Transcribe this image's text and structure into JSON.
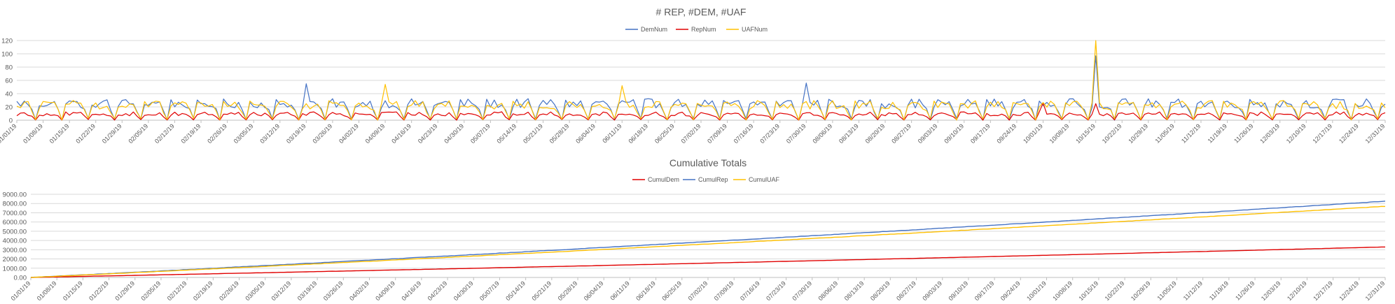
{
  "chart_data": [
    {
      "type": "line",
      "title": "# REP, #DEM, #UAF",
      "xlabel": "",
      "ylabel": "",
      "ylim": [
        0,
        120
      ],
      "yticks": [
        "0",
        "20",
        "40",
        "60",
        "80",
        "100",
        "120"
      ],
      "x_start": "2019-01-01",
      "x_end": "2019-12-31",
      "x_tick_step_days": 7,
      "series": [
        {
          "name": "DemNum",
          "color": "#4472c4",
          "base": 24,
          "amplitude": 14,
          "peaks": [
            {
              "date": "2019-10-15",
              "value": 97
            },
            {
              "date": "2019-07-30",
              "value": 56
            },
            {
              "date": "2019-03-19",
              "value": 55
            }
          ]
        },
        {
          "name": "RepNum",
          "color": "#e00000",
          "base": 9,
          "amplitude": 6,
          "peaks": [
            {
              "date": "2019-10-15",
              "value": 25
            },
            {
              "date": "2019-10-01",
              "value": 26
            }
          ]
        },
        {
          "name": "UAFNum",
          "color": "#ffc000",
          "base": 22,
          "amplitude": 13,
          "peaks": [
            {
              "date": "2019-10-15",
              "value": 121
            },
            {
              "date": "2019-04-09",
              "value": 54
            },
            {
              "date": "2019-06-11",
              "value": 52
            }
          ]
        }
      ]
    },
    {
      "type": "line",
      "title": "Cumulative Totals",
      "xlabel": "",
      "ylabel": "",
      "ylim": [
        0,
        9000
      ],
      "yticks": [
        "0.00",
        "1000.00",
        "2000.00",
        "3000.00",
        "4000.00",
        "5000.00",
        "6000.00",
        "7000.00",
        "8000.00",
        "9000.00"
      ],
      "x_start": "2019-01-01",
      "x_end": "2019-12-31",
      "x_tick_step_days": 7,
      "series": [
        {
          "name": "CumulDem",
          "color": "#e00000",
          "final": 3300
        },
        {
          "name": "CumulRep",
          "color": "#4472c4",
          "final": 8250
        },
        {
          "name": "CumulUAF",
          "color": "#ffc000",
          "final": 7700
        }
      ]
    }
  ]
}
